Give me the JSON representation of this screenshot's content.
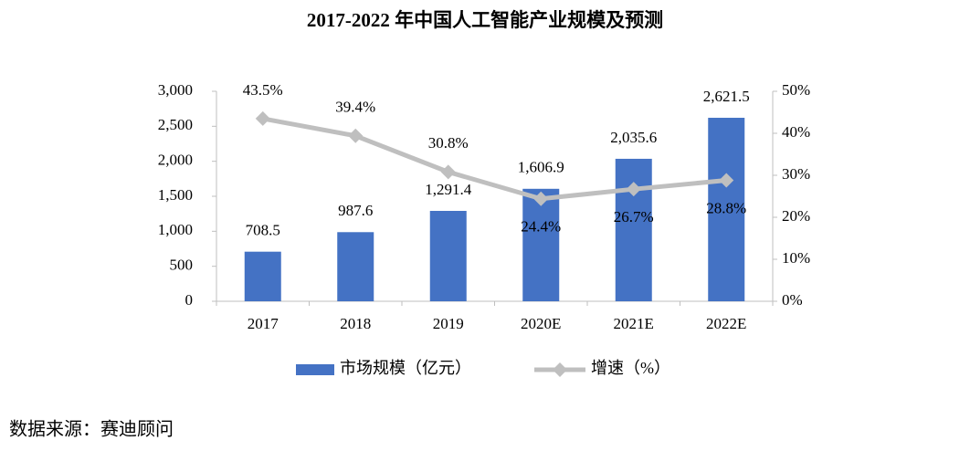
{
  "chart_data": {
    "type": "bar",
    "title": "2017-2022 年中国人工智能产业规模及预测",
    "categories": [
      "2017",
      "2018",
      "2019",
      "2020E",
      "2021E",
      "2022E"
    ],
    "series": [
      {
        "name": "市场规模（亿元）",
        "type": "bar",
        "color": "#4472c4",
        "values": [
          708.5,
          987.6,
          1291.4,
          1606.9,
          2035.6,
          2621.5
        ],
        "value_labels": [
          "708.5",
          "987.6",
          "1,291.4",
          "1,606.9",
          "2,035.6",
          "2,621.5"
        ]
      },
      {
        "name": "增速（%）",
        "type": "line",
        "axis": "y2",
        "color": "#bfbfbf",
        "values": [
          43.5,
          39.4,
          30.8,
          24.4,
          26.7,
          28.8
        ],
        "value_labels": [
          "43.5%",
          "39.4%",
          "30.8%",
          "24.4%",
          "26.7%",
          "28.8%"
        ]
      }
    ],
    "ylim": [
      0,
      3000
    ],
    "yticks": [
      0,
      500,
      {
        "value": 1000,
        "label": "1,000"
      },
      {
        "value": 1500,
        "label": "1,500"
      },
      {
        "value": 2000,
        "label": "2,000"
      },
      {
        "value": 2500,
        "label": "2,500"
      },
      {
        "value": 3000,
        "label": "3,000"
      }
    ],
    "y2lim": [
      0,
      50
    ],
    "y2ticks": [
      {
        "value": 0,
        "label": "0%"
      },
      {
        "value": 10,
        "label": "10%"
      },
      {
        "value": 20,
        "label": "20%"
      },
      {
        "value": 30,
        "label": "30%"
      },
      {
        "value": 40,
        "label": "40%"
      },
      {
        "value": 50,
        "label": "50%"
      }
    ],
    "grid": false,
    "legend": "bottom",
    "source": "数据来源：赛迪顾问"
  }
}
